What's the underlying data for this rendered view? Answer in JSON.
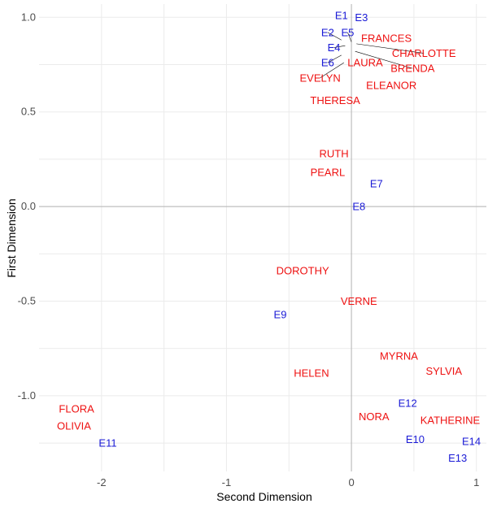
{
  "chart_data": {
    "type": "scatter",
    "xlabel": "Second Dimension",
    "ylabel": "First Dimension",
    "xlim": [
      -2.5,
      1.08
    ],
    "ylim": [
      -1.4,
      1.07
    ],
    "x_ticks": [
      -2,
      -1,
      0,
      1
    ],
    "y_ticks": [
      -1.0,
      -0.5,
      0.0,
      0.5,
      1.0
    ],
    "x_tick_labels": [
      "-2",
      "-1",
      "0",
      "1"
    ],
    "y_tick_labels": [
      "-1.0",
      "-0.5",
      "0.0",
      "0.5",
      "1.0"
    ],
    "grid": true,
    "reference_lines": {
      "x": 0,
      "y": 0
    },
    "colors": {
      "women": "#ee1111",
      "events": "#1a1ad6",
      "grid": "#ebebeb",
      "refline": "#b3b3b3",
      "leader": "#000000"
    },
    "points": [
      {
        "label": "FLORA",
        "group": "women",
        "x": -2.2,
        "y": -1.07
      },
      {
        "label": "OLIVIA",
        "group": "women",
        "x": -2.22,
        "y": -1.16
      },
      {
        "label": "E11",
        "group": "events",
        "x": -1.95,
        "y": -1.25
      },
      {
        "label": "E1",
        "group": "events",
        "x": -0.08,
        "y": 1.01
      },
      {
        "label": "E3",
        "group": "events",
        "x": 0.08,
        "y": 1.0
      },
      {
        "label": "E2",
        "group": "events",
        "x": -0.19,
        "y": 0.92
      },
      {
        "label": "E5",
        "group": "events",
        "x": -0.03,
        "y": 0.92
      },
      {
        "label": "E4",
        "group": "events",
        "x": -0.14,
        "y": 0.84
      },
      {
        "label": "E6",
        "group": "events",
        "x": -0.19,
        "y": 0.76
      },
      {
        "label": "FRANCES",
        "group": "women",
        "x": 0.28,
        "y": 0.89
      },
      {
        "label": "CHARLOTTE",
        "group": "women",
        "x": 0.58,
        "y": 0.81
      },
      {
        "label": "LAURA",
        "group": "women",
        "x": 0.11,
        "y": 0.76
      },
      {
        "label": "BRENDA",
        "group": "women",
        "x": 0.49,
        "y": 0.73
      },
      {
        "label": "EVELYN",
        "group": "women",
        "x": -0.25,
        "y": 0.68
      },
      {
        "label": "ELEANOR",
        "group": "women",
        "x": 0.32,
        "y": 0.64
      },
      {
        "label": "THERESA",
        "group": "women",
        "x": -0.13,
        "y": 0.56
      },
      {
        "label": "RUTH",
        "group": "women",
        "x": -0.14,
        "y": 0.28
      },
      {
        "label": "PEARL",
        "group": "women",
        "x": -0.19,
        "y": 0.18
      },
      {
        "label": "E7",
        "group": "events",
        "x": 0.2,
        "y": 0.12
      },
      {
        "label": "E8",
        "group": "events",
        "x": 0.06,
        "y": 0.0
      },
      {
        "label": "DOROTHY",
        "group": "women",
        "x": -0.39,
        "y": -0.34
      },
      {
        "label": "VERNE",
        "group": "women",
        "x": 0.06,
        "y": -0.5
      },
      {
        "label": "E9",
        "group": "events",
        "x": -0.57,
        "y": -0.57
      },
      {
        "label": "MYRNA",
        "group": "women",
        "x": 0.38,
        "y": -0.79
      },
      {
        "label": "SYLVIA",
        "group": "women",
        "x": 0.74,
        "y": -0.87
      },
      {
        "label": "HELEN",
        "group": "women",
        "x": -0.32,
        "y": -0.88
      },
      {
        "label": "E12",
        "group": "events",
        "x": 0.45,
        "y": -1.04
      },
      {
        "label": "NORA",
        "group": "women",
        "x": 0.18,
        "y": -1.11
      },
      {
        "label": "KATHERINE",
        "group": "women",
        "x": 0.79,
        "y": -1.13
      },
      {
        "label": "E10",
        "group": "events",
        "x": 0.51,
        "y": -1.23
      },
      {
        "label": "E14",
        "group": "events",
        "x": 0.96,
        "y": -1.24
      },
      {
        "label": "E13",
        "group": "events",
        "x": 0.85,
        "y": -1.33
      }
    ]
  }
}
